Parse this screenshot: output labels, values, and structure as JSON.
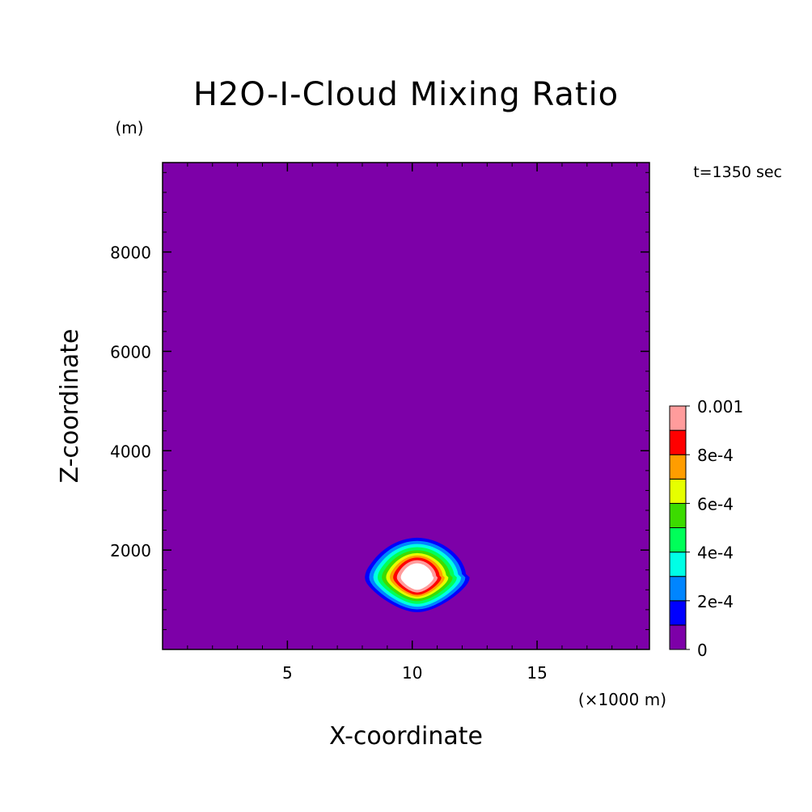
{
  "chart_data": {
    "type": "heatmap",
    "title": "H2O-I-Cloud Mixing Ratio",
    "xlabel": "X-coordinate",
    "ylabel": "Z-coordinate",
    "x_unit_label": "(×1000 m)",
    "y_unit_label": "(m)",
    "time_label": "t=1350 sec",
    "xlim": [
      0,
      19.5
    ],
    "ylim": [
      0,
      9800
    ],
    "x_ticks": [
      5,
      10,
      15
    ],
    "x_tick_labels": [
      "5",
      "10",
      "15"
    ],
    "y_ticks": [
      2000,
      4000,
      6000,
      8000
    ],
    "y_tick_labels": [
      "2000",
      "4000",
      "6000",
      "8000"
    ],
    "background_level": 0,
    "colorbar": {
      "levels": [
        0,
        0.0001,
        0.0002,
        0.0003,
        0.0004,
        0.0005,
        0.0006,
        0.0007,
        0.0008,
        0.0009,
        0.001
      ],
      "tick_values": [
        0,
        0.0002,
        0.0004,
        0.0006,
        0.0008,
        0.001
      ],
      "tick_labels": [
        "0",
        "2e-4",
        "4e-4",
        "6e-4",
        "8e-4",
        "0.001"
      ],
      "colors": [
        "#7d00a8",
        "#0000ff",
        "#0085ff",
        "#00ffe6",
        "#00ff59",
        "#3cdb00",
        "#e6ff00",
        "#ff9d00",
        "#ff0000",
        "#ff9c9c"
      ],
      "over_color": "#ffffff"
    },
    "cloud": {
      "center_x": 10.2,
      "center_z": 1450,
      "contours": [
        {
          "level": 0.0001,
          "color": "#0000ff",
          "half_width_x": 1.85,
          "half_height_z": 760
        },
        {
          "level": 0.0002,
          "color": "#0085ff",
          "half_width_x": 1.7,
          "half_height_z": 700
        },
        {
          "level": 0.0003,
          "color": "#00ffe6",
          "half_width_x": 1.55,
          "half_height_z": 640
        },
        {
          "level": 0.0004,
          "color": "#00ff59",
          "half_width_x": 1.4,
          "half_height_z": 580
        },
        {
          "level": 0.0005,
          "color": "#3cdb00",
          "half_width_x": 1.25,
          "half_height_z": 520
        },
        {
          "level": 0.0006,
          "color": "#e6ff00",
          "half_width_x": 1.1,
          "half_height_z": 465
        },
        {
          "level": 0.0007,
          "color": "#ff9d00",
          "half_width_x": 0.97,
          "half_height_z": 420
        },
        {
          "level": 0.0008,
          "color": "#ff0000",
          "half_width_x": 0.85,
          "half_height_z": 380
        },
        {
          "level": 0.0009,
          "color": "#ff9c9c",
          "half_width_x": 0.72,
          "half_height_z": 330
        },
        {
          "level": 0.001,
          "color": "#ffffff",
          "half_width_x": 0.58,
          "half_height_z": 270
        }
      ]
    }
  }
}
